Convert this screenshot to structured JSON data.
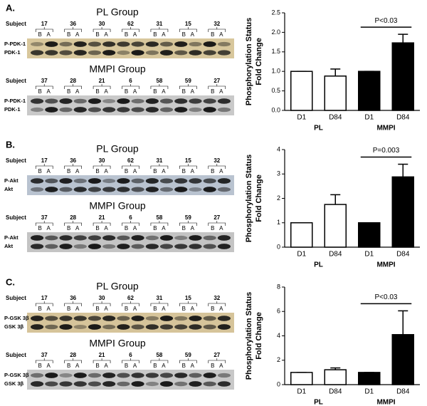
{
  "panels": [
    {
      "label": "A.",
      "blots": [
        {
          "title": "PL Group",
          "subject_label": "Subject",
          "subjects": [
            "17",
            "36",
            "30",
            "62",
            "31",
            "15",
            "32"
          ],
          "lanes": [
            "B",
            "A"
          ],
          "proteins": [
            "P-PDK-1",
            "PDK-1"
          ]
        },
        {
          "title": "MMPI Group",
          "subject_label": "Subject",
          "subjects": [
            "37",
            "28",
            "21",
            "6",
            "58",
            "59",
            "27"
          ],
          "lanes": [
            "B",
            "A"
          ],
          "proteins": [
            "P-PDK-1",
            "PDK-1"
          ]
        }
      ]
    },
    {
      "label": "B.",
      "blots": [
        {
          "title": "PL Group",
          "subject_label": "Subject",
          "subjects": [
            "17",
            "36",
            "30",
            "62",
            "31",
            "15",
            "32"
          ],
          "lanes": [
            "B",
            "A"
          ],
          "proteins": [
            "P-Akt",
            "Akt"
          ]
        },
        {
          "title": "MMPI Group",
          "subject_label": "Subject",
          "subjects": [
            "37",
            "28",
            "21",
            "6",
            "58",
            "59",
            "27"
          ],
          "lanes": [
            "B",
            "A"
          ],
          "proteins": [
            "P-Akt",
            "Akt"
          ]
        }
      ]
    },
    {
      "label": "C.",
      "blots": [
        {
          "title": "PL Group",
          "subject_label": "Subject",
          "subjects": [
            "17",
            "36",
            "30",
            "62",
            "31",
            "15",
            "32"
          ],
          "lanes": [
            "B",
            "A"
          ],
          "proteins": [
            "P-GSK 3β",
            "GSK 3β"
          ]
        },
        {
          "title": "MMPI Group",
          "subject_label": "Subject",
          "subjects": [
            "37",
            "28",
            "21",
            "6",
            "58",
            "59",
            "27"
          ],
          "lanes": [
            "B",
            "A"
          ],
          "proteins": [
            "P-GSK 3β",
            "GSK 3β"
          ]
        }
      ]
    }
  ],
  "chart_data": [
    {
      "type": "bar",
      "y_label": [
        "Phosphorylation Status",
        "Fold Change"
      ],
      "categories": [
        "D1",
        "D84",
        "D1",
        "D84"
      ],
      "groups": [
        "PL",
        "MMPI"
      ],
      "values": [
        1,
        0.88,
        1,
        1.73
      ],
      "errors": [
        0,
        0.18,
        0,
        0.22
      ],
      "colors": [
        "#ffffff",
        "#ffffff",
        "#000000",
        "#000000"
      ],
      "ylim": [
        0,
        2.5
      ],
      "yticks": [
        {
          "value": 0,
          "label": "0.0"
        },
        0.5,
        {
          "value": 1,
          "label": "1.0"
        },
        1.5,
        {
          "value": 2,
          "label": "2.0"
        },
        2.5
      ],
      "annotation": "P<0.03"
    },
    {
      "type": "bar",
      "y_label": [
        "Phosphorylation Status",
        "Fold Change"
      ],
      "categories": [
        "D1",
        "D84",
        "D1",
        "D84"
      ],
      "groups": [
        "PL",
        "MMPI"
      ],
      "values": [
        1,
        1.75,
        1,
        2.88
      ],
      "errors": [
        0,
        0.4,
        0,
        0.52
      ],
      "colors": [
        "#ffffff",
        "#ffffff",
        "#000000",
        "#000000"
      ],
      "ylim": [
        0,
        4
      ],
      "yticks": [
        0,
        1,
        2,
        3,
        4
      ],
      "annotation": "P=0.003"
    },
    {
      "type": "bar",
      "y_label": [
        "Phosphorylation Status",
        "Fold Change"
      ],
      "categories": [
        "D1",
        "D84",
        "D1",
        "D84"
      ],
      "groups": [
        "PL",
        "MMPI"
      ],
      "values": [
        1,
        1.22,
        1,
        4.1
      ],
      "errors": [
        0,
        0.15,
        0,
        1.95
      ],
      "colors": [
        "#ffffff",
        "#ffffff",
        "#000000",
        "#000000"
      ],
      "ylim": [
        0,
        8
      ],
      "yticks": [
        0,
        2,
        4,
        6,
        8
      ],
      "annotation": "P<0.03"
    }
  ]
}
